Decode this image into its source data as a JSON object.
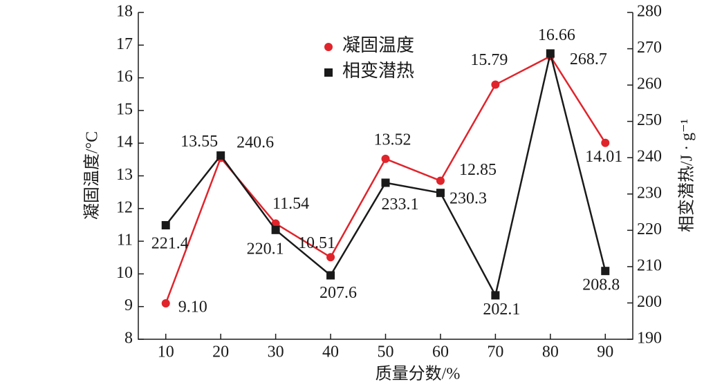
{
  "chart_data": {
    "type": "line",
    "xlabel": "质量分数/%",
    "ylabel": "凝固温度/°C",
    "y2label": "相变潜热/J · g⁻¹",
    "x": [
      10,
      20,
      30,
      40,
      50,
      60,
      70,
      80,
      90
    ],
    "xlim": [
      5,
      95
    ],
    "xticks": [
      10,
      20,
      30,
      40,
      50,
      60,
      70,
      80,
      90
    ],
    "ylim": [
      8,
      18
    ],
    "yticks": [
      8,
      9,
      10,
      11,
      12,
      13,
      14,
      15,
      16,
      17,
      18
    ],
    "y2lim": [
      190,
      280
    ],
    "y2ticks": [
      190,
      200,
      210,
      220,
      230,
      240,
      250,
      260,
      270,
      280
    ],
    "legend": "upper center",
    "series": [
      {
        "name": "凝固温度",
        "color": "#e0242b",
        "marker": "circle",
        "values": [
          9.1,
          13.55,
          11.54,
          10.51,
          13.52,
          12.85,
          15.79,
          16.66,
          14.01
        ],
        "value_labels": [
          "9.10",
          "13.55",
          "11.54",
          "10.51",
          "13.52",
          "12.85",
          "15.79",
          "16.66",
          "14.01"
        ]
      },
      {
        "name": "相变潜热",
        "color": "#1a1a1a",
        "marker": "square",
        "axis": "y2",
        "values": [
          221.4,
          240.6,
          220.1,
          207.6,
          233.1,
          230.3,
          202.1,
          268.7,
          208.8
        ]
      }
    ]
  }
}
